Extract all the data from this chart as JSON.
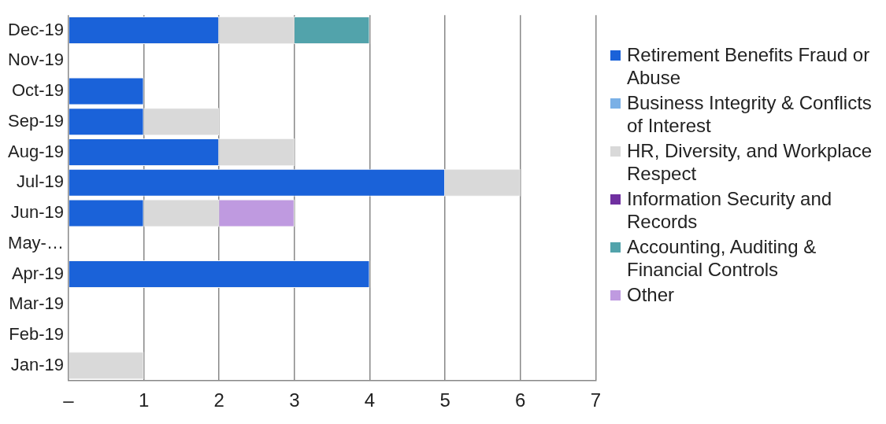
{
  "chart_data": {
    "type": "bar",
    "orientation": "horizontal",
    "stacked": true,
    "categories": [
      "Dec-19",
      "Nov-19",
      "Oct-19",
      "Sep-19",
      "Aug-19",
      "Jul-19",
      "Jun-19",
      "May-…",
      "Apr-19",
      "Mar-19",
      "Feb-19",
      "Jan-19"
    ],
    "series": [
      {
        "name": "Retirement Benefits Fraud or Abuse",
        "color": "#1a62d9",
        "values": [
          2,
          0,
          1,
          1,
          2,
          5,
          1,
          0,
          4,
          0,
          0,
          0
        ]
      },
      {
        "name": "Business Integrity & Conflicts of Interest",
        "color": "#7ab0e6",
        "values": [
          0,
          0,
          0,
          0,
          0,
          0,
          0,
          0,
          0,
          0,
          0,
          0
        ]
      },
      {
        "name": "HR, Diversity, and Workplace Respect",
        "color": "#d9d9d9",
        "values": [
          1,
          0,
          0,
          1,
          1,
          1,
          1,
          0,
          0,
          0,
          0,
          1
        ]
      },
      {
        "name": "Information Security and Records",
        "color": "#7030a0",
        "values": [
          0,
          0,
          0,
          0,
          0,
          0,
          0,
          0,
          0,
          0,
          0,
          0
        ]
      },
      {
        "name": "Accounting, Auditing & Financial Controls",
        "color": "#52a3ab",
        "values": [
          1,
          0,
          0,
          0,
          0,
          0,
          0,
          0,
          0,
          0,
          0,
          0
        ]
      },
      {
        "name": "Other",
        "color": "#bf9ae0",
        "values": [
          0,
          0,
          0,
          0,
          0,
          0,
          1,
          0,
          0,
          0,
          0,
          0
        ]
      }
    ],
    "xlim": [
      0,
      7
    ],
    "xticks": [
      {
        "value": 0,
        "label": "–"
      },
      1,
      2,
      3,
      4,
      5,
      6,
      7
    ],
    "grid": "x",
    "legend": "right"
  }
}
